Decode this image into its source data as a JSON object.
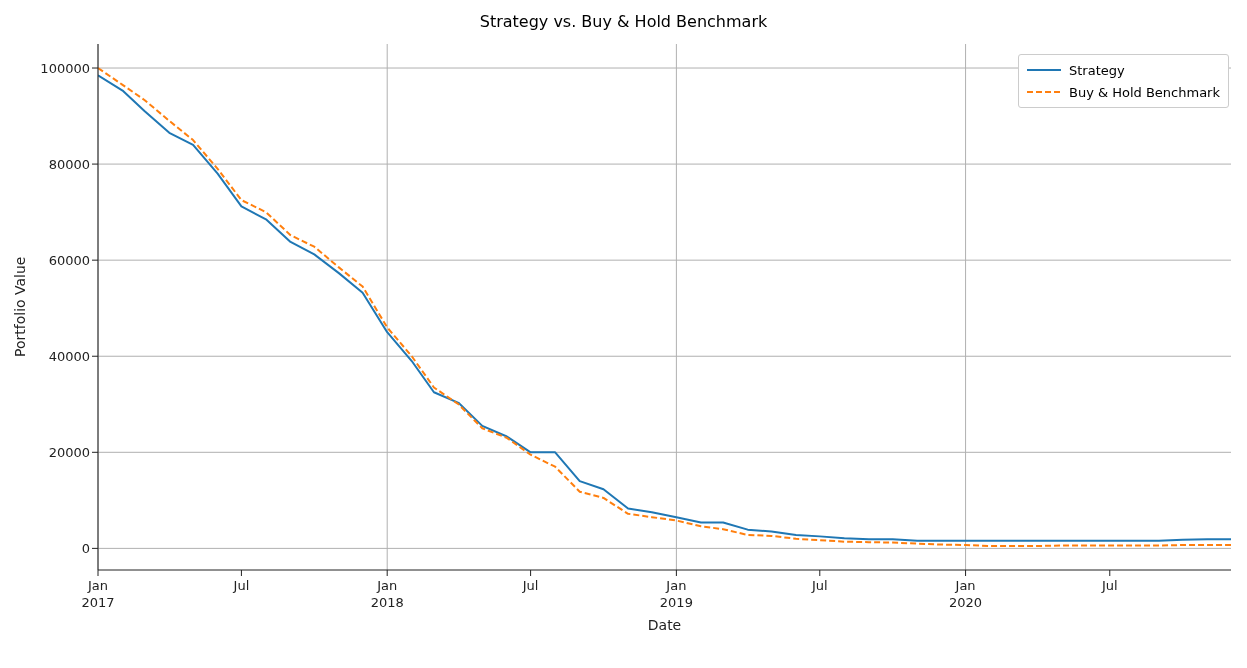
{
  "chart_data": {
    "type": "line",
    "title": "Strategy vs. Buy & Hold Benchmark",
    "xlabel": "Date",
    "ylabel": "Portfolio Value",
    "x": [
      "2017-01",
      "2017-02",
      "2017-03",
      "2017-04",
      "2017-05",
      "2017-06",
      "2017-07",
      "2017-08",
      "2017-09",
      "2017-10",
      "2017-11",
      "2017-12",
      "2018-01",
      "2018-02",
      "2018-03",
      "2018-04",
      "2018-05",
      "2018-06",
      "2018-07",
      "2018-08",
      "2018-09",
      "2018-10",
      "2018-11",
      "2018-12",
      "2019-01",
      "2019-02",
      "2019-03",
      "2019-04",
      "2019-05",
      "2019-06",
      "2019-07",
      "2019-08",
      "2019-09",
      "2019-10",
      "2019-11",
      "2019-12",
      "2020-01",
      "2020-02",
      "2020-03",
      "2020-04",
      "2020-05",
      "2020-06",
      "2020-07",
      "2020-08",
      "2020-09",
      "2020-10",
      "2020-11",
      "2020-12"
    ],
    "series": [
      {
        "name": "Strategy",
        "color": "#1f77b4",
        "line_style": "solid",
        "values": [
          98500,
          95300,
          91000,
          86500,
          84000,
          78000,
          71200,
          68500,
          63800,
          61200,
          57300,
          53200,
          45000,
          39000,
          32500,
          30300,
          25500,
          23300,
          20000,
          20000,
          14000,
          12300,
          8300,
          7500,
          6500,
          5400,
          5400,
          3900,
          3500,
          2800,
          2500,
          2100,
          1900,
          1900,
          1600,
          1600,
          1600,
          1600,
          1600,
          1600,
          1600,
          1600,
          1600,
          1600,
          1600,
          1800,
          1900,
          1900
        ]
      },
      {
        "name": "Buy & Hold Benchmark",
        "color": "#ff7f0e",
        "line_style": "dashed",
        "values": [
          100000,
          96500,
          93300,
          89000,
          85000,
          79000,
          72500,
          70000,
          65200,
          62800,
          58500,
          54500,
          46000,
          40000,
          33500,
          30000,
          25000,
          23000,
          19500,
          17000,
          11800,
          10500,
          7200,
          6500,
          5800,
          4600,
          4000,
          2800,
          2600,
          2000,
          1700,
          1400,
          1300,
          1200,
          1000,
          800,
          700,
          500,
          500,
          500,
          600,
          600,
          600,
          600,
          600,
          700,
          700,
          700
        ]
      }
    ],
    "xlim": [
      "2017-01",
      "2020-12"
    ],
    "xticks": [
      {
        "value": "2017-01",
        "label": "Jan\n2017"
      },
      {
        "value": "2017-07",
        "label": "Jul"
      },
      {
        "value": "2018-01",
        "label": "Jan\n2018"
      },
      {
        "value": "2018-07",
        "label": "Jul"
      },
      {
        "value": "2019-01",
        "label": "Jan\n2019"
      },
      {
        "value": "2019-07",
        "label": "Jul"
      },
      {
        "value": "2020-01",
        "label": "Jan\n2020"
      },
      {
        "value": "2020-07",
        "label": "Jul"
      }
    ],
    "ylim": [
      -4500,
      105000
    ],
    "yticks": [
      0,
      20000,
      40000,
      60000,
      80000,
      100000
    ],
    "grid": true,
    "legend": "top right",
    "marker": "none"
  }
}
